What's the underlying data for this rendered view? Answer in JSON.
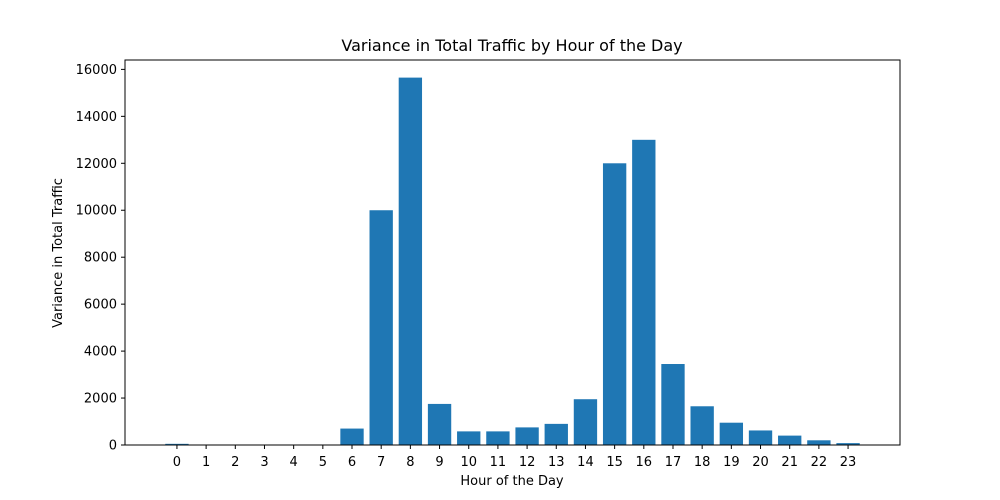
{
  "chart_data": {
    "type": "bar",
    "title": "Variance in Total Traffic by Hour of the Day",
    "xlabel": "Hour of the Day",
    "ylabel": "Variance in Total Traffic",
    "categories": [
      "0",
      "1",
      "2",
      "3",
      "4",
      "5",
      "6",
      "7",
      "8",
      "9",
      "10",
      "11",
      "12",
      "13",
      "14",
      "15",
      "16",
      "17",
      "18",
      "19",
      "20",
      "21",
      "22",
      "23"
    ],
    "values": [
      50,
      0,
      0,
      0,
      0,
      0,
      700,
      10000,
      15650,
      1750,
      580,
      580,
      750,
      900,
      1950,
      12000,
      13000,
      3450,
      1650,
      950,
      620,
      400,
      200,
      80
    ],
    "yticks": [
      0,
      2000,
      4000,
      6000,
      8000,
      10000,
      12000,
      14000,
      16000
    ],
    "ylim": [
      0,
      16400
    ],
    "xlim": [
      -1.78,
      24.78
    ],
    "grid": false,
    "bar_color": "#1f77b4"
  }
}
